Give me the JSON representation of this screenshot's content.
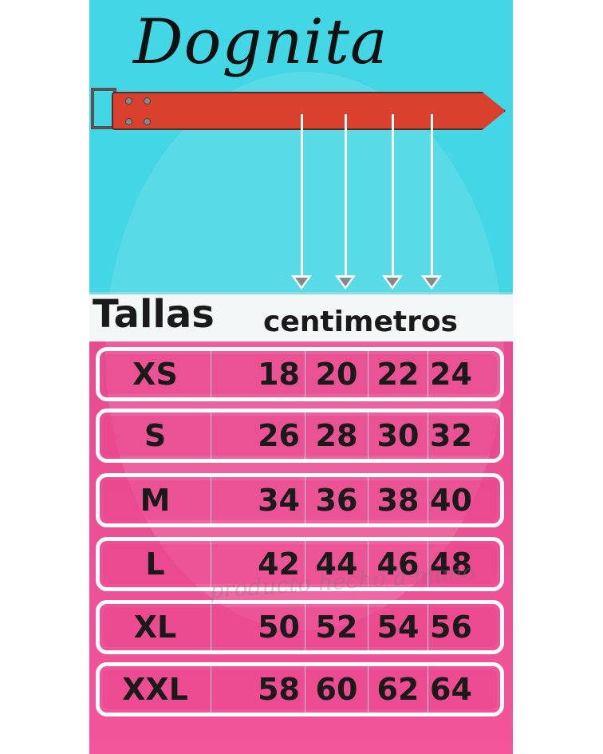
{
  "brand": {
    "name": "Dognita",
    "paw_icon": "paw-heart-icon"
  },
  "header": {
    "title": "Tallas",
    "unit": "centimetros"
  },
  "colors": {
    "sky": "#43d6e4",
    "pink": "#ee4f93",
    "collar": "#d9412e",
    "text": "#1a1a1a"
  },
  "sizes": [
    {
      "size": "XS",
      "values": [
        "18",
        "20",
        "22",
        "24"
      ]
    },
    {
      "size": "S",
      "values": [
        "26",
        "28",
        "30",
        "32"
      ]
    },
    {
      "size": "M",
      "values": [
        "34",
        "36",
        "38",
        "40"
      ]
    },
    {
      "size": "L",
      "values": [
        "42",
        "44",
        "46",
        "48"
      ]
    },
    {
      "size": "XL",
      "values": [
        "50",
        "52",
        "54",
        "56"
      ]
    },
    {
      "size": "XXL",
      "values": [
        "58",
        "60",
        "62",
        "64"
      ]
    }
  ],
  "watermark": "producto hecho a mano"
}
